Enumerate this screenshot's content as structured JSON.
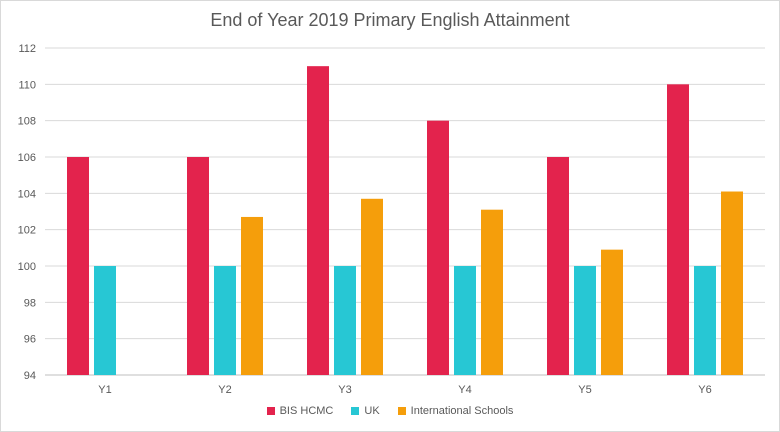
{
  "chart_data": {
    "type": "bar",
    "title": "End of Year 2019 Primary English Attainment",
    "xlabel": "",
    "ylabel": "",
    "categories": [
      "Y1",
      "Y2",
      "Y3",
      "Y4",
      "Y5",
      "Y6"
    ],
    "ylim": [
      94,
      112
    ],
    "yticks": [
      94,
      96,
      98,
      100,
      102,
      104,
      106,
      108,
      110,
      112
    ],
    "grid": true,
    "legend_position": "bottom",
    "series": [
      {
        "name": "BIS HCMC",
        "color": "#e3234d",
        "values": [
          106,
          106,
          111,
          108,
          106,
          110
        ]
      },
      {
        "name": "UK",
        "color": "#27c7d4",
        "values": [
          100,
          100,
          100,
          100,
          100,
          100
        ]
      },
      {
        "name": "International Schools",
        "color": "#f59e0b",
        "values": [
          null,
          102.7,
          103.7,
          103.1,
          100.9,
          104.1
        ]
      }
    ]
  }
}
